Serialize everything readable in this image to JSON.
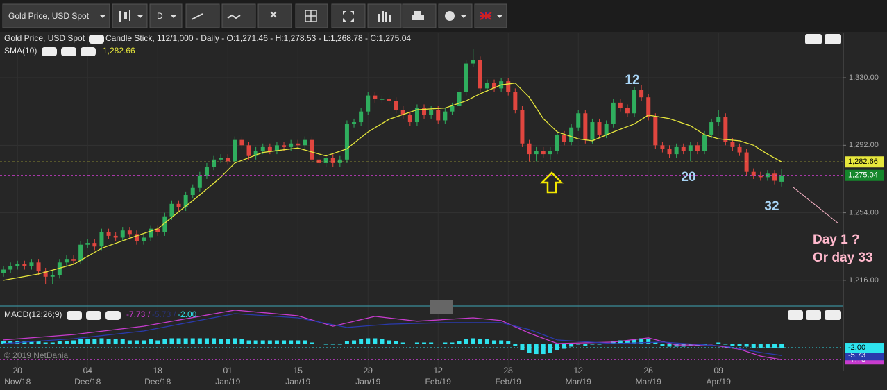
{
  "toolbar": {
    "symbol": "Gold Price, USD Spot",
    "interval": "D"
  },
  "chart_data": [
    {
      "type": "candlestick",
      "title": "Gold Price, USD Spot",
      "subtitle": "Candle Stick, 112/1,000 - Daily - O:1,271.46 - H:1,278.53 - L:1,268.78 - C:1,275.04",
      "up_color": "#2fae5e",
      "down_color": "#e0463f",
      "open": [
        1220,
        1222,
        1224,
        1225,
        1224,
        1226,
        1221,
        1218,
        1219,
        1226,
        1228,
        1227,
        1236,
        1237,
        1235,
        1243,
        1241,
        1240,
        1244,
        1242,
        1238,
        1240,
        1245,
        1243,
        1252,
        1259,
        1257,
        1264,
        1268,
        1275,
        1280,
        1284,
        1285,
        1283,
        1295,
        1292,
        1286,
        1289,
        1291,
        1289,
        1292,
        1291,
        1293,
        1292,
        1295,
        1284,
        1282,
        1285,
        1282,
        1284,
        1304,
        1305,
        1311,
        1320,
        1318,
        1318,
        1317,
        1312,
        1309,
        1305,
        1313,
        1309,
        1312,
        1306,
        1311,
        1314,
        1322,
        1338,
        1340,
        1324,
        1327,
        1324,
        1328,
        1322,
        1312,
        1293,
        1287,
        1289,
        1287,
        1289,
        1298,
        1294,
        1302,
        1310,
        1295,
        1305,
        1298,
        1304,
        1316,
        1313,
        1310,
        1323,
        1319,
        1308,
        1292,
        1290,
        1287,
        1291,
        1289,
        1292,
        1289,
        1298,
        1305,
        1308,
        1294,
        1291,
        1288,
        1277,
        1275,
        1274,
        1276,
        1271.46
      ],
      "high": [
        1224,
        1226,
        1227,
        1227,
        1228,
        1228,
        1223,
        1221,
        1228,
        1230,
        1230,
        1238,
        1239,
        1239,
        1245,
        1245,
        1243,
        1246,
        1246,
        1244,
        1242,
        1247,
        1247,
        1254,
        1261,
        1261,
        1266,
        1270,
        1277,
        1282,
        1286,
        1287,
        1287,
        1297,
        1297,
        1294,
        1291,
        1293,
        1293,
        1294,
        1294,
        1295,
        1295,
        1297,
        1297,
        1286,
        1287,
        1287,
        1286,
        1306,
        1307,
        1313,
        1322,
        1322,
        1320,
        1320,
        1319,
        1314,
        1311,
        1315,
        1315,
        1314,
        1314,
        1313,
        1316,
        1324,
        1340,
        1346,
        1342,
        1329,
        1329,
        1330,
        1330,
        1324,
        1314,
        1295,
        1291,
        1291,
        1291,
        1300,
        1300,
        1304,
        1312,
        1312,
        1307,
        1307,
        1306,
        1318,
        1318,
        1315,
        1325,
        1326,
        1321,
        1310,
        1294,
        1292,
        1293,
        1293,
        1294,
        1294,
        1300,
        1307,
        1312,
        1310,
        1296,
        1293,
        1290,
        1279,
        1277,
        1278,
        1278,
        1278.53
      ],
      "low": [
        1218,
        1220,
        1222,
        1222,
        1222,
        1219,
        1214,
        1214,
        1217,
        1224,
        1225,
        1225,
        1234,
        1233,
        1233,
        1239,
        1238,
        1238,
        1240,
        1236,
        1236,
        1238,
        1241,
        1241,
        1250,
        1255,
        1255,
        1262,
        1266,
        1273,
        1278,
        1282,
        1281,
        1281,
        1290,
        1284,
        1284,
        1287,
        1287,
        1287,
        1289,
        1289,
        1290,
        1290,
        1282,
        1280,
        1280,
        1280,
        1280,
        1282,
        1302,
        1303,
        1309,
        1316,
        1316,
        1315,
        1310,
        1307,
        1303,
        1303,
        1307,
        1307,
        1304,
        1304,
        1309,
        1312,
        1320,
        1336,
        1322,
        1322,
        1322,
        1322,
        1320,
        1310,
        1291,
        1283,
        1283,
        1285,
        1284,
        1287,
        1292,
        1292,
        1300,
        1293,
        1293,
        1296,
        1296,
        1302,
        1311,
        1308,
        1308,
        1317,
        1306,
        1290,
        1288,
        1285,
        1285,
        1287,
        1283,
        1287,
        1287,
        1296,
        1303,
        1292,
        1289,
        1286,
        1275,
        1273,
        1272,
        1272,
        1270,
        1268.78
      ],
      "close": [
        1222,
        1224,
        1225,
        1224,
        1226,
        1221,
        1218,
        1219,
        1226,
        1228,
        1227,
        1236,
        1237,
        1235,
        1243,
        1241,
        1240,
        1244,
        1242,
        1238,
        1240,
        1245,
        1243,
        1252,
        1259,
        1257,
        1264,
        1268,
        1275,
        1280,
        1284,
        1285,
        1283,
        1295,
        1292,
        1286,
        1289,
        1291,
        1289,
        1292,
        1291,
        1293,
        1292,
        1295,
        1284,
        1282,
        1285,
        1282,
        1284,
        1304,
        1305,
        1311,
        1320,
        1318,
        1318,
        1317,
        1312,
        1309,
        1305,
        1313,
        1309,
        1312,
        1306,
        1311,
        1314,
        1322,
        1338,
        1340,
        1324,
        1327,
        1324,
        1328,
        1322,
        1312,
        1293,
        1287,
        1289,
        1287,
        1289,
        1298,
        1294,
        1302,
        1310,
        1295,
        1305,
        1298,
        1304,
        1316,
        1313,
        1310,
        1323,
        1319,
        1308,
        1292,
        1290,
        1287,
        1291,
        1289,
        1292,
        1289,
        1298,
        1305,
        1308,
        1294,
        1291,
        1288,
        1277,
        1275,
        1274,
        1276,
        1272,
        1275.04
      ],
      "close_label": "1,275.04",
      "close_line_color": "#d23fd2",
      "close_tag_color": "#15872c",
      "overlay": {
        "name": "SMA(10)",
        "color": "#e6e63c",
        "value_label": "1,282.66",
        "x": [
          0,
          5,
          10,
          14,
          19,
          22,
          25,
          28,
          31,
          33,
          37,
          42,
          46,
          49,
          52,
          55,
          59,
          63,
          66,
          68,
          71,
          73,
          75,
          77,
          79,
          82,
          84,
          87,
          90,
          92,
          95,
          98,
          100,
          102,
          105,
          107,
          109,
          111
        ],
        "values": [
          1216,
          1219.5,
          1225,
          1234,
          1241,
          1245,
          1254.6,
          1264,
          1274,
          1282,
          1288,
          1290.5,
          1286,
          1290,
          1299.5,
          1306.6,
          1312,
          1313,
          1317,
          1321,
          1326,
          1327,
          1319,
          1307,
          1299.5,
          1295.6,
          1294.5,
          1299.5,
          1304,
          1309,
          1307,
          1303,
          1298,
          1295.6,
          1294.5,
          1292,
          1287,
          1282.66
        ]
      },
      "xlim": [
        -0.5,
        119.8
      ],
      "xticks": [
        {
          "value": 2,
          "label": "20",
          "sublabel": "Nov/18"
        },
        {
          "value": 12,
          "label": "04",
          "sublabel": "Dec/18"
        },
        {
          "value": 22,
          "label": "18",
          "sublabel": "Dec/18"
        },
        {
          "value": 32,
          "label": "01",
          "sublabel": "Jan/19"
        },
        {
          "value": 42,
          "label": "15",
          "sublabel": "Jan/19"
        },
        {
          "value": 52,
          "label": "29",
          "sublabel": "Jan/19"
        },
        {
          "value": 62,
          "label": "12",
          "sublabel": "Feb/19"
        },
        {
          "value": 72,
          "label": "26",
          "sublabel": "Feb/19"
        },
        {
          "value": 82,
          "label": "12",
          "sublabel": "Mar/19"
        },
        {
          "value": 92,
          "label": "26",
          "sublabel": "Mar/19"
        },
        {
          "value": 102,
          "label": "09",
          "sublabel": "Apr/19"
        }
      ],
      "ylim": [
        1201.9,
        1355.4
      ],
      "yticks": [
        {
          "value": 1216,
          "label": "1,216.00"
        },
        {
          "value": 1254,
          "label": "1,254.00"
        },
        {
          "value": 1292,
          "label": "1,292.00"
        },
        {
          "value": 1330,
          "label": "1,330.00"
        }
      ],
      "grid": true
    },
    {
      "type": "macd",
      "title": "MACD(12;26;9)",
      "separator": "/",
      "series": [
        {
          "color": "#c83ccf",
          "value_label": "-7.73",
          "x": [
            0,
            10,
            20,
            33,
            42,
            47,
            53,
            59,
            67,
            71,
            75,
            79,
            87,
            92,
            96,
            101,
            105,
            108,
            111
          ],
          "values": [
            1.7,
            4.3,
            8.3,
            16,
            13.3,
            8.3,
            13,
            10.7,
            12.3,
            11,
            5,
            0,
            0.7,
            2.7,
            -0.7,
            -0.7,
            -2.7,
            -6,
            -7.73
          ]
        },
        {
          "color": "#2a3aad",
          "value_label": "-5.73",
          "x": [
            0,
            10,
            20,
            33,
            42,
            49,
            55,
            63,
            71,
            75,
            79,
            87,
            94,
            103,
            108,
            111
          ],
          "values": [
            0,
            2.3,
            6,
            14.3,
            12.3,
            7.7,
            9.3,
            10,
            10,
            6.7,
            1.7,
            0,
            0.7,
            -1.3,
            -4.3,
            -5.73
          ]
        }
      ],
      "histogram": {
        "color": "#2ee3ee",
        "value_label": "-2.00",
        "values": [
          1,
          1,
          1,
          1,
          1,
          1,
          0.5,
          0.5,
          1,
          1,
          1.5,
          2,
          2,
          2,
          2.5,
          2,
          2,
          2,
          1.5,
          1.5,
          1.5,
          2,
          1.5,
          2,
          2.5,
          2.5,
          2.5,
          2.5,
          2.5,
          2.5,
          2.5,
          2,
          2,
          2.5,
          2,
          1.5,
          1.5,
          1.5,
          1.5,
          1.5,
          1.5,
          1.5,
          1.5,
          1.5,
          0.5,
          0,
          -0.5,
          -0.5,
          -0.5,
          1,
          1.5,
          2,
          2.5,
          2.5,
          2,
          1.5,
          1,
          0.5,
          0,
          0.5,
          0.5,
          0.5,
          0,
          0.5,
          0.5,
          1,
          2,
          2.5,
          2,
          2,
          1.5,
          1.5,
          1,
          -1,
          -3,
          -4.5,
          -5,
          -5,
          -4.5,
          -3,
          -2.5,
          -1.5,
          -0.5,
          -1,
          -0.5,
          -0.5,
          0,
          1,
          1.5,
          1.5,
          2,
          2.5,
          2,
          0.5,
          -1,
          -1.5,
          -1.5,
          -1.5,
          -1,
          -1,
          -0.5,
          0,
          0.5,
          -0.5,
          -1,
          -1,
          -1.5,
          -2,
          -2,
          -2,
          -2,
          -2.0
        ]
      },
      "ylim": [
        -13.3,
        17.3
      ]
    }
  ],
  "copyright": "© 2019 NetDania",
  "annotations": [
    "12",
    "20",
    "32",
    "Day 1 ?",
    "Or day 33"
  ]
}
